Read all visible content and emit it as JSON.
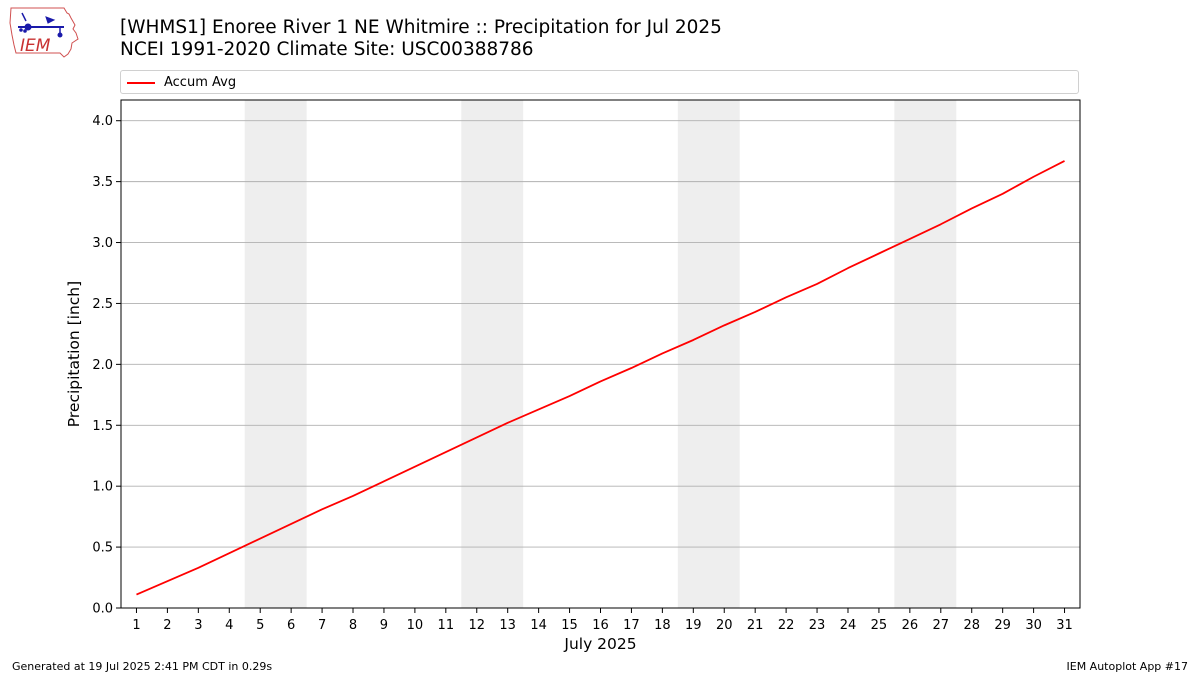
{
  "logo": {
    "text": "IEM",
    "icon": "iowa-state-outline-weather-icon"
  },
  "header": {
    "title": "[WHMS1] Enoree River 1 NE Whitmire :: Precipitation for Jul 2025",
    "subtitle": "NCEI 1991-2020 Climate Site: USC00388786"
  },
  "footer": {
    "generated": "Generated at 19 Jul 2025 2:41 PM CDT in 0.29s",
    "app": "IEM Autoplot App #17"
  },
  "colors": {
    "series": "#ff0000",
    "weekend": "#eeeeee",
    "grid": "#b0b0b0"
  },
  "chart_data": {
    "type": "line",
    "xlabel": "July 2025",
    "ylabel": "Precipitation [inch]",
    "xlim": [
      0.5,
      31.5
    ],
    "ylim": [
      0.0,
      4.17
    ],
    "yticks": [
      0.0,
      0.5,
      1.0,
      1.5,
      2.0,
      2.5,
      3.0,
      3.5,
      4.0
    ],
    "ytick_labels": [
      "0.0",
      "0.5",
      "1.0",
      "1.5",
      "2.0",
      "2.5",
      "3.0",
      "3.5",
      "4.0"
    ],
    "x": [
      1,
      2,
      3,
      4,
      5,
      6,
      7,
      8,
      9,
      10,
      11,
      12,
      13,
      14,
      15,
      16,
      17,
      18,
      19,
      20,
      21,
      22,
      23,
      24,
      25,
      26,
      27,
      28,
      29,
      30,
      31
    ],
    "xtick_labels": [
      "1",
      "2",
      "3",
      "4",
      "5",
      "6",
      "7",
      "8",
      "9",
      "10",
      "11",
      "12",
      "13",
      "14",
      "15",
      "16",
      "17",
      "18",
      "19",
      "20",
      "21",
      "22",
      "23",
      "24",
      "25",
      "26",
      "27",
      "28",
      "29",
      "30",
      "31"
    ],
    "grid": "horizontal",
    "shaded_days": [
      [
        5,
        6
      ],
      [
        12,
        13
      ],
      [
        19,
        20
      ],
      [
        26,
        27
      ]
    ],
    "legend": {
      "placement": "top",
      "entries": [
        "Accum Avg"
      ]
    },
    "series": [
      {
        "name": "Accum Avg",
        "values": [
          0.11,
          0.22,
          0.33,
          0.45,
          0.57,
          0.69,
          0.81,
          0.92,
          1.04,
          1.16,
          1.28,
          1.4,
          1.52,
          1.63,
          1.74,
          1.86,
          1.97,
          2.09,
          2.2,
          2.32,
          2.43,
          2.55,
          2.66,
          2.79,
          2.91,
          3.03,
          3.15,
          3.28,
          3.4,
          3.54,
          3.67
        ]
      }
    ]
  }
}
